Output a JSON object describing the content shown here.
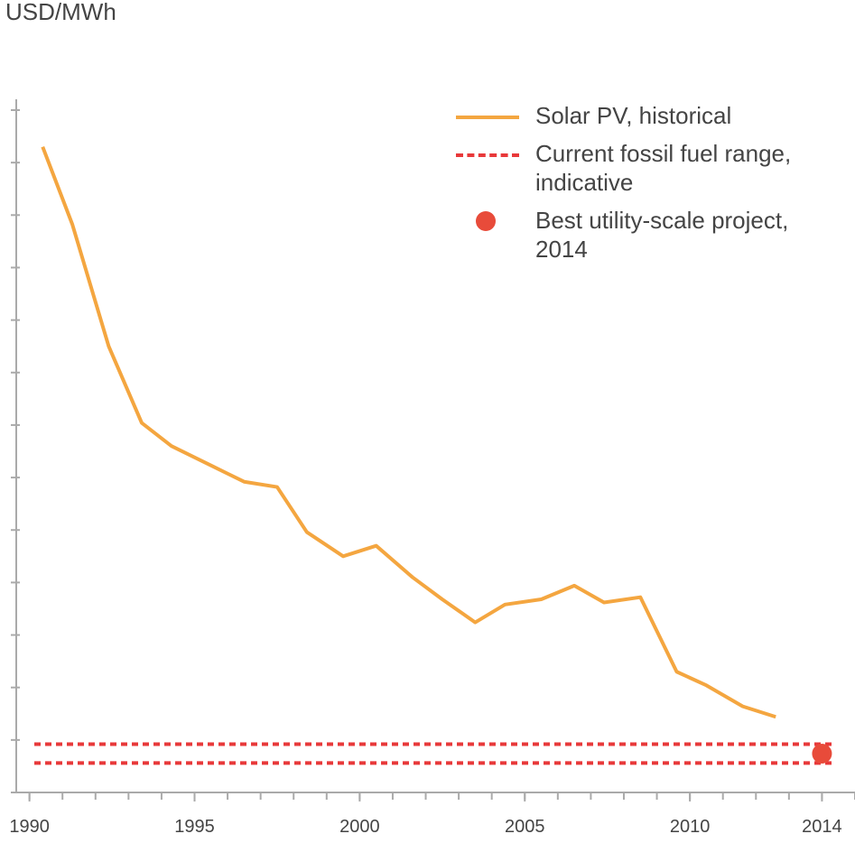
{
  "chart_data": {
    "type": "line",
    "y_label": "USD/MWh",
    "series": [
      {
        "name": "Solar PV, historical",
        "color": "#f4a640",
        "x": [
          1990.4,
          1991.3,
          1992.4,
          1993.4,
          1994.3,
          1995.4,
          1996.5,
          1997.5,
          1998.4,
          1999.5,
          2000.5,
          2001.6,
          2002.5,
          2003.5,
          2004.4,
          2005.5,
          2006.5,
          2007.4,
          2008.5,
          2009.6,
          2010.5,
          2011.6,
          2012.6
        ],
        "values": [
          615,
          541,
          425,
          352,
          330,
          313,
          296,
          291,
          248,
          225,
          235,
          205,
          184,
          162,
          179,
          184,
          197,
          181,
          186,
          115,
          102,
          82,
          72
        ]
      }
    ],
    "fossil_range": {
      "name": "Current fossil fuel range, indicative",
      "color": "#e8393a",
      "values": [
        28,
        46
      ]
    },
    "best_project": {
      "name": "Best utility-scale project, 2014",
      "color": "#e84b3a",
      "x": 2014,
      "value": 37
    },
    "xlim": [
      1989.6,
      2015
    ],
    "xticks": [
      1990,
      1995,
      2000,
      2005,
      2010,
      2014
    ],
    "ylim": [
      0,
      650
    ],
    "yticks": [
      0,
      50,
      100,
      150,
      200,
      250,
      300,
      350,
      400,
      450,
      500,
      550,
      600,
      650
    ]
  }
}
